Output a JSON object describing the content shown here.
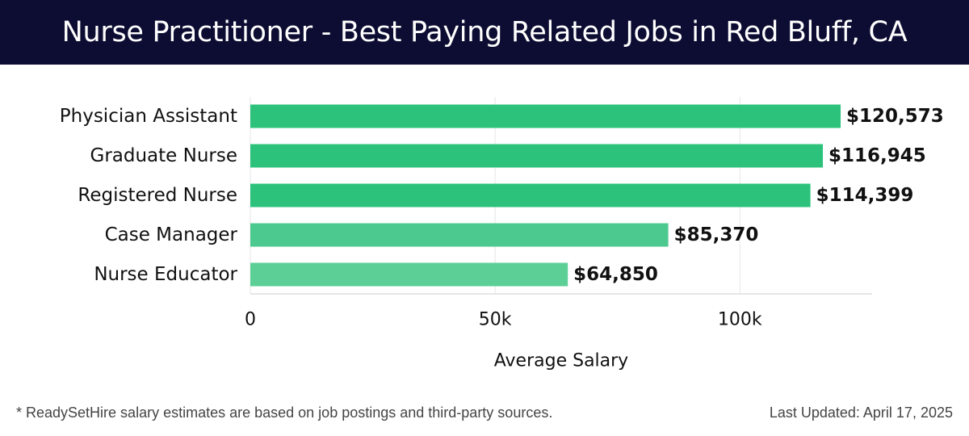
{
  "header": {
    "title": "Nurse Practitioner - Best Paying Related Jobs in Red Bluff, CA"
  },
  "footer": {
    "footnote": "* ReadySetHire salary estimates are based on job postings and third-party sources.",
    "last_updated": "Last Updated: April 17, 2025"
  },
  "colors": {
    "header_bg": "#0d0d33",
    "bar_dark": "#2cc27b",
    "bar_medium": "#4cc98e",
    "bar_light": "#5ccf97"
  },
  "chart_data": {
    "type": "bar",
    "orientation": "horizontal",
    "title": "Nurse Practitioner - Best Paying Related Jobs in Red Bluff, CA",
    "categories": [
      "Physician Assistant",
      "Graduate Nurse",
      "Registered Nurse",
      "Case Manager",
      "Nurse Educator"
    ],
    "values": [
      120573,
      116945,
      114399,
      85370,
      64850
    ],
    "value_labels": [
      "$120,573",
      "$116,945",
      "$114,399",
      "$85,370",
      "$64,850"
    ],
    "bar_colors": [
      "#2cc27b",
      "#2cc27b",
      "#2cc27b",
      "#4cc98e",
      "#5ccf97"
    ],
    "xlabel": "Average Salary",
    "ylabel": "",
    "xlim": [
      0,
      127000
    ],
    "xticks": [
      0,
      50000,
      100000
    ],
    "xtick_labels": [
      "0",
      "50k",
      "100k"
    ],
    "grid": true
  }
}
